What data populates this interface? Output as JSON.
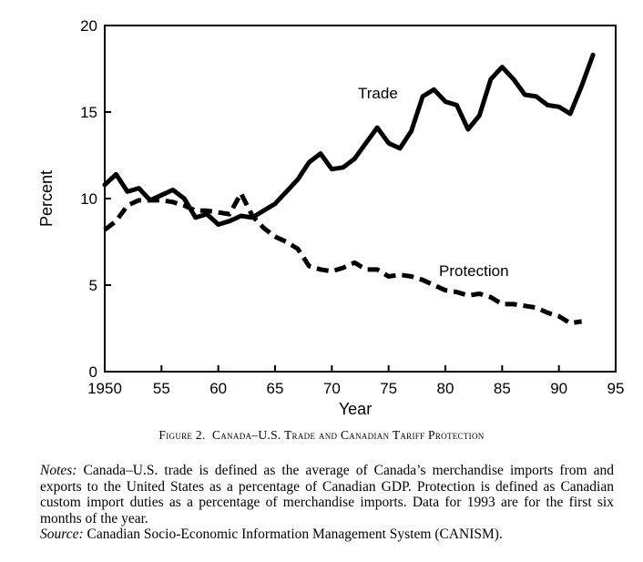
{
  "chart_data": {
    "type": "line",
    "title": "",
    "xlabel": "Year",
    "ylabel": "Percent",
    "xlim": [
      1950,
      1995
    ],
    "ylim": [
      0,
      20
    ],
    "x_ticks": [
      1950,
      1955,
      1960,
      1965,
      1970,
      1975,
      1980,
      1985,
      1990,
      1995
    ],
    "x_tick_labels": [
      "1950",
      "55",
      "60",
      "65",
      "70",
      "75",
      "80",
      "85",
      "90",
      "95"
    ],
    "y_ticks": [
      0,
      5,
      10,
      15,
      20
    ],
    "y_tick_labels": [
      "0",
      "5",
      "10",
      "15",
      "20"
    ],
    "grid": false,
    "legend": "none",
    "series": [
      {
        "name": "Trade",
        "style": "solid",
        "x": [
          1950,
          1951,
          1952,
          1953,
          1954,
          1955,
          1956,
          1957,
          1958,
          1959,
          1960,
          1961,
          1962,
          1963,
          1964,
          1965,
          1966,
          1967,
          1968,
          1969,
          1970,
          1971,
          1972,
          1973,
          1974,
          1975,
          1976,
          1977,
          1978,
          1979,
          1980,
          1981,
          1982,
          1983,
          1984,
          1985,
          1986,
          1987,
          1988,
          1989,
          1990,
          1991,
          1992,
          1993
        ],
        "values": [
          10.8,
          11.4,
          10.4,
          10.6,
          9.9,
          10.2,
          10.5,
          10.0,
          8.9,
          9.1,
          8.5,
          8.7,
          9.0,
          8.9,
          9.3,
          9.7,
          10.4,
          11.1,
          12.1,
          12.6,
          11.7,
          11.8,
          12.3,
          13.2,
          14.1,
          13.2,
          12.9,
          13.9,
          15.9,
          16.3,
          15.6,
          15.4,
          14.0,
          14.8,
          16.9,
          17.6,
          16.9,
          16.0,
          15.9,
          15.4,
          15.3,
          14.9,
          16.5,
          18.3
        ]
      },
      {
        "name": "Protection",
        "style": "dashed",
        "x": [
          1950,
          1951,
          1952,
          1953,
          1954,
          1955,
          1956,
          1957,
          1958,
          1959,
          1960,
          1961,
          1962,
          1963,
          1964,
          1965,
          1966,
          1967,
          1968,
          1969,
          1970,
          1971,
          1972,
          1973,
          1974,
          1975,
          1976,
          1977,
          1978,
          1979,
          1980,
          1981,
          1982,
          1983,
          1984,
          1985,
          1986,
          1987,
          1988,
          1989,
          1990,
          1991,
          1992
        ],
        "values": [
          8.2,
          8.7,
          9.6,
          9.9,
          9.9,
          9.9,
          9.8,
          9.6,
          9.3,
          9.3,
          9.2,
          9.1,
          10.3,
          9.0,
          8.3,
          7.8,
          7.5,
          7.1,
          6.1,
          5.9,
          5.8,
          6.0,
          6.3,
          5.9,
          5.9,
          5.5,
          5.6,
          5.5,
          5.3,
          5.0,
          4.7,
          4.6,
          4.4,
          4.5,
          4.3,
          3.9,
          3.9,
          3.8,
          3.7,
          3.4,
          3.2,
          2.8,
          2.9
        ]
      }
    ]
  },
  "caption": {
    "figure_number": "Figure 2.",
    "title": "Canada–U.S. Trade and Canadian Tariff Protection"
  },
  "notes": {
    "notes_label": "Notes:",
    "notes_text": "Canada–U.S. trade is defined as the average of Canada’s merchandise imports from and exports to the United States as a percentage of Canadian GDP. Protection is defined as Canadian custom import duties as a percentage of merchandise imports. Data for 1993 are for the first six months of the year.",
    "source_label": "Source:",
    "source_text": "Canadian Socio-Economic Information Management System (CANISM)."
  }
}
